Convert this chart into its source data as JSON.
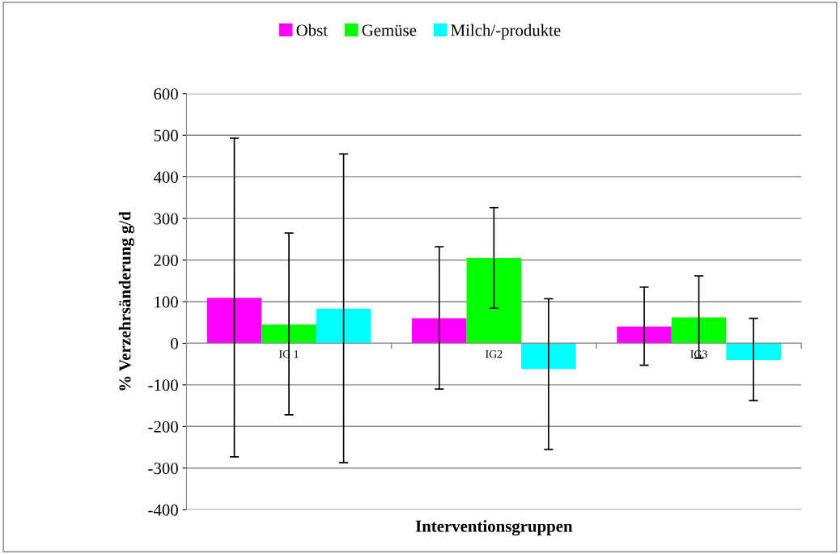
{
  "chart_data": {
    "type": "bar",
    "categories": [
      "IG 1",
      "IG2",
      "IG3"
    ],
    "series": [
      {
        "name": "Obst",
        "color": "#ff00ff",
        "values": [
          109,
          60,
          40
        ],
        "errors": [
          [
            -273,
            493
          ],
          [
            -110,
            232
          ],
          [
            -53,
            135
          ]
        ]
      },
      {
        "name": "Gemüse",
        "color": "#00ff00",
        "values": [
          45,
          205,
          62
        ],
        "errors": [
          [
            -172,
            265
          ],
          [
            84,
            326
          ],
          [
            -36,
            162
          ]
        ]
      },
      {
        "name": "Milch/-produkte",
        "color": "#00ffff",
        "values": [
          83,
          -62,
          -40
        ],
        "errors": [
          [
            -287,
            455
          ],
          [
            -255,
            107
          ],
          [
            -138,
            60
          ]
        ]
      }
    ],
    "xlabel": "Interventionsgruppen",
    "ylabel": "% Verzehrsänderung g/d",
    "ylim": [
      -400,
      600
    ],
    "yticks": [
      -400,
      -300,
      -200,
      -100,
      0,
      100,
      200,
      300,
      400,
      500,
      600
    ],
    "grid": "y",
    "legend": "top"
  }
}
